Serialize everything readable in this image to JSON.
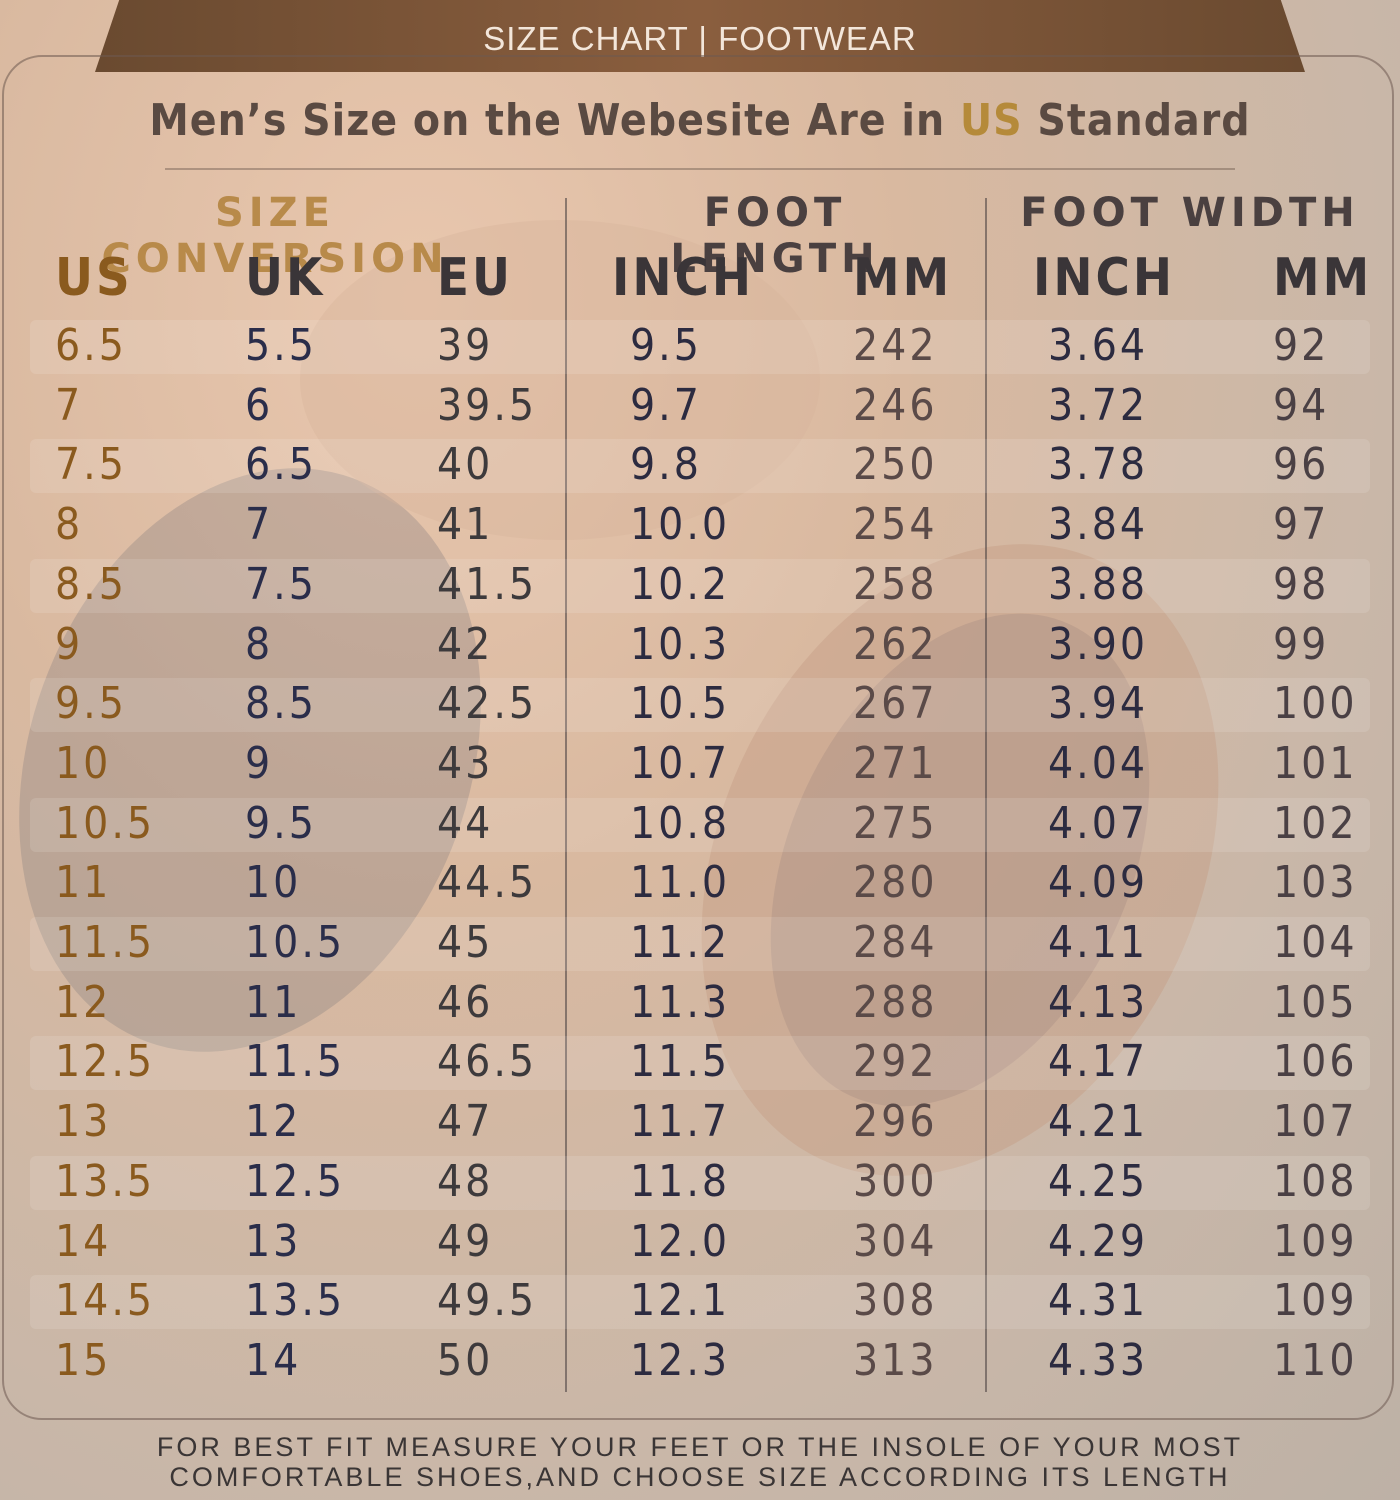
{
  "banner": {
    "text": "SIZE CHART | FOOTWEAR"
  },
  "heading": {
    "before": "Men’s Size on the Webesite Are in",
    "highlight": "US",
    "after": "Standard"
  },
  "groups": [
    "SIZE CONVERSION",
    "FOOT LENGTH",
    "FOOT WIDTH"
  ],
  "columns": [
    "US",
    "UK",
    "EU",
    "INCH",
    "MM",
    "INCH",
    "MM"
  ],
  "rows": [
    [
      "6.5",
      "5.5",
      "39",
      "9.5",
      "242",
      "3.64",
      "92"
    ],
    [
      "7",
      "6",
      "39.5",
      "9.7",
      "246",
      "3.72",
      "94"
    ],
    [
      "7.5",
      "6.5",
      "40",
      "9.8",
      "250",
      "3.78",
      "96"
    ],
    [
      "8",
      "7",
      "41",
      "10.0",
      "254",
      "3.84",
      "97"
    ],
    [
      "8.5",
      "7.5",
      "41.5",
      "10.2",
      "258",
      "3.88",
      "98"
    ],
    [
      "9",
      "8",
      "42",
      "10.3",
      "262",
      "3.90",
      "99"
    ],
    [
      "9.5",
      "8.5",
      "42.5",
      "10.5",
      "267",
      "3.94",
      "100"
    ],
    [
      "10",
      "9",
      "43",
      "10.7",
      "271",
      "4.04",
      "101"
    ],
    [
      "10.5",
      "9.5",
      "44",
      "10.8",
      "275",
      "4.07",
      "102"
    ],
    [
      "11",
      "10",
      "44.5",
      "11.0",
      "280",
      "4.09",
      "103"
    ],
    [
      "11.5",
      "10.5",
      "45",
      "11.2",
      "284",
      "4.11",
      "104"
    ],
    [
      "12",
      "11",
      "46",
      "11.3",
      "288",
      "4.13",
      "105"
    ],
    [
      "12.5",
      "11.5",
      "46.5",
      "11.5",
      "292",
      "4.17",
      "106"
    ],
    [
      "13",
      "12",
      "47",
      "11.7",
      "296",
      "4.21",
      "107"
    ],
    [
      "13.5",
      "12.5",
      "48",
      "11.8",
      "300",
      "4.25",
      "108"
    ],
    [
      "14",
      "13",
      "49",
      "12.0",
      "304",
      "4.29",
      "109"
    ],
    [
      "14.5",
      "13.5",
      "49.5",
      "12.1",
      "308",
      "4.31",
      "109"
    ],
    [
      "15",
      "14",
      "50",
      "12.3",
      "313",
      "4.33",
      "110"
    ]
  ],
  "footer": [
    "FOR BEST FIT MEASURE YOUR FEET OR THE INSOLE OF YOUR MOST",
    "COMFORTABLE SHOES,AND CHOOSE SIZE ACCORDING ITS LENGTH"
  ]
}
